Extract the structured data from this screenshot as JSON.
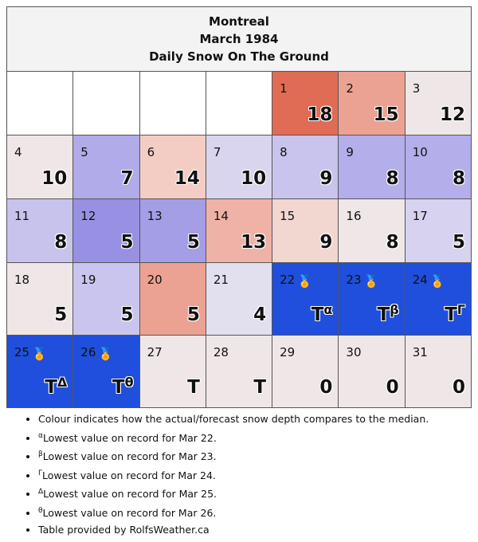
{
  "title": {
    "city": "Montreal",
    "month": "March 1984",
    "subtitle": "Daily Snow On The Ground"
  },
  "colors": {
    "above_strong": "#e06c55",
    "above_medium": "#eca292",
    "above_light": "#f3cdc4",
    "near_median": "#efe7e7",
    "below_light": "#d9d5ee",
    "below_medium": "#c2bcec",
    "below_strong": "#aca6e8",
    "below_stronger": "#9890e3",
    "record_low": "#1f4fdc",
    "empty": "#ffffff"
  },
  "weeks": [
    [
      {
        "day": "",
        "value": "",
        "sup": "",
        "medal": false,
        "color": "#ffffff"
      },
      {
        "day": "",
        "value": "",
        "sup": "",
        "medal": false,
        "color": "#ffffff"
      },
      {
        "day": "",
        "value": "",
        "sup": "",
        "medal": false,
        "color": "#ffffff"
      },
      {
        "day": "",
        "value": "",
        "sup": "",
        "medal": false,
        "color": "#ffffff"
      },
      {
        "day": "1",
        "value": "18",
        "sup": "",
        "medal": false,
        "color": "#e06c55"
      },
      {
        "day": "2",
        "value": "15",
        "sup": "",
        "medal": false,
        "color": "#eca292"
      },
      {
        "day": "3",
        "value": "12",
        "sup": "",
        "medal": false,
        "color": "#efe7e7"
      }
    ],
    [
      {
        "day": "4",
        "value": "10",
        "sup": "",
        "medal": false,
        "color": "#efe7e7"
      },
      {
        "day": "5",
        "value": "7",
        "sup": "",
        "medal": false,
        "color": "#b1abe9"
      },
      {
        "day": "6",
        "value": "14",
        "sup": "",
        "medal": false,
        "color": "#f3cdc4"
      },
      {
        "day": "7",
        "value": "10",
        "sup": "",
        "medal": false,
        "color": "#d9d5ee"
      },
      {
        "day": "8",
        "value": "9",
        "sup": "",
        "medal": false,
        "color": "#c8c4ed"
      },
      {
        "day": "9",
        "value": "8",
        "sup": "",
        "medal": false,
        "color": "#b4aeea"
      },
      {
        "day": "10",
        "value": "8",
        "sup": "",
        "medal": false,
        "color": "#b4aeea"
      }
    ],
    [
      {
        "day": "11",
        "value": "8",
        "sup": "",
        "medal": false,
        "color": "#c7c3ed"
      },
      {
        "day": "12",
        "value": "5",
        "sup": "",
        "medal": false,
        "color": "#9890e3"
      },
      {
        "day": "13",
        "value": "5",
        "sup": "",
        "medal": false,
        "color": "#a49ee6"
      },
      {
        "day": "14",
        "value": "13",
        "sup": "",
        "medal": false,
        "color": "#eeb3a6"
      },
      {
        "day": "15",
        "value": "9",
        "sup": "",
        "medal": false,
        "color": "#f2d6d0"
      },
      {
        "day": "16",
        "value": "8",
        "sup": "",
        "medal": false,
        "color": "#efe7e7"
      },
      {
        "day": "17",
        "value": "5",
        "sup": "",
        "medal": false,
        "color": "#d6d2ef"
      }
    ],
    [
      {
        "day": "18",
        "value": "5",
        "sup": "",
        "medal": false,
        "color": "#efe7e7"
      },
      {
        "day": "19",
        "value": "5",
        "sup": "",
        "medal": false,
        "color": "#c9c5ee"
      },
      {
        "day": "20",
        "value": "5",
        "sup": "",
        "medal": false,
        "color": "#eca292"
      },
      {
        "day": "21",
        "value": "4",
        "sup": "",
        "medal": false,
        "color": "#e2e0ef"
      },
      {
        "day": "22",
        "value": "T",
        "sup": "α",
        "medal": true,
        "color": "#1f4fdc"
      },
      {
        "day": "23",
        "value": "T",
        "sup": "β",
        "medal": true,
        "color": "#1f4fdc"
      },
      {
        "day": "24",
        "value": "T",
        "sup": "Γ",
        "medal": true,
        "color": "#1f4fdc"
      }
    ],
    [
      {
        "day": "25",
        "value": "T",
        "sup": "Δ",
        "medal": true,
        "color": "#1f4fdc"
      },
      {
        "day": "26",
        "value": "T",
        "sup": "θ",
        "medal": true,
        "color": "#1f4fdc"
      },
      {
        "day": "27",
        "value": "T",
        "sup": "",
        "medal": false,
        "color": "#efe7e7"
      },
      {
        "day": "28",
        "value": "T",
        "sup": "",
        "medal": false,
        "color": "#efe7e7"
      },
      {
        "day": "29",
        "value": "0",
        "sup": "",
        "medal": false,
        "color": "#efe7e7"
      },
      {
        "day": "30",
        "value": "0",
        "sup": "",
        "medal": false,
        "color": "#efe7e7"
      },
      {
        "day": "31",
        "value": "0",
        "sup": "",
        "medal": false,
        "color": "#efe7e7"
      }
    ]
  ],
  "notes": [
    {
      "sup": "",
      "text": "Colour indicates how the actual/forecast snow depth compares to the median."
    },
    {
      "sup": "α",
      "text": "Lowest value on record for Mar 22."
    },
    {
      "sup": "β",
      "text": "Lowest value on record for Mar 23."
    },
    {
      "sup": "Γ",
      "text": "Lowest value on record for Mar 24."
    },
    {
      "sup": "Δ",
      "text": "Lowest value on record for Mar 25."
    },
    {
      "sup": "θ",
      "text": "Lowest value on record for Mar 26."
    },
    {
      "sup": "",
      "text": "Table provided by RolfsWeather.ca"
    }
  ],
  "medal_icon": "medal-icon"
}
